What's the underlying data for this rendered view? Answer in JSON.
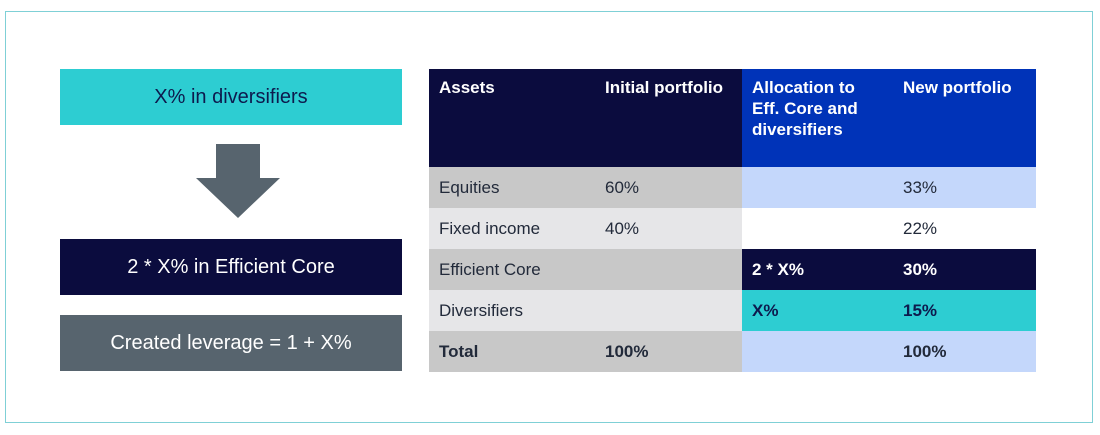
{
  "flow": {
    "diversifiers_box": "X% in diversifiers",
    "core_box": "2 * X% in Efficient Core",
    "leverage_box": "Created leverage = 1 + X%"
  },
  "table": {
    "headers": {
      "assets": "Assets",
      "initial": "Initial portfolio",
      "allocation": "Allocation to Eff. Core and diversifiers",
      "new": "New portfolio"
    },
    "rows": [
      {
        "asset": "Equities",
        "initial": "60%",
        "allocation": "",
        "new": "33%"
      },
      {
        "asset": "Fixed income",
        "initial": "40%",
        "allocation": "",
        "new": "22%"
      },
      {
        "asset": "Efficient Core",
        "initial": "",
        "allocation": "2 * X%",
        "new": "30%"
      },
      {
        "asset": "Diversifiers",
        "initial": "",
        "allocation": "X%",
        "new": "15%"
      },
      {
        "asset": "Total",
        "initial": "100%",
        "allocation": "",
        "new": "100%"
      }
    ]
  },
  "colors": {
    "turquoise": "#2dcdd2",
    "navy": "#0b0c3e",
    "slate": "#57646e",
    "royal_blue": "#0033b8",
    "light_blue": "#c4d7fb"
  }
}
